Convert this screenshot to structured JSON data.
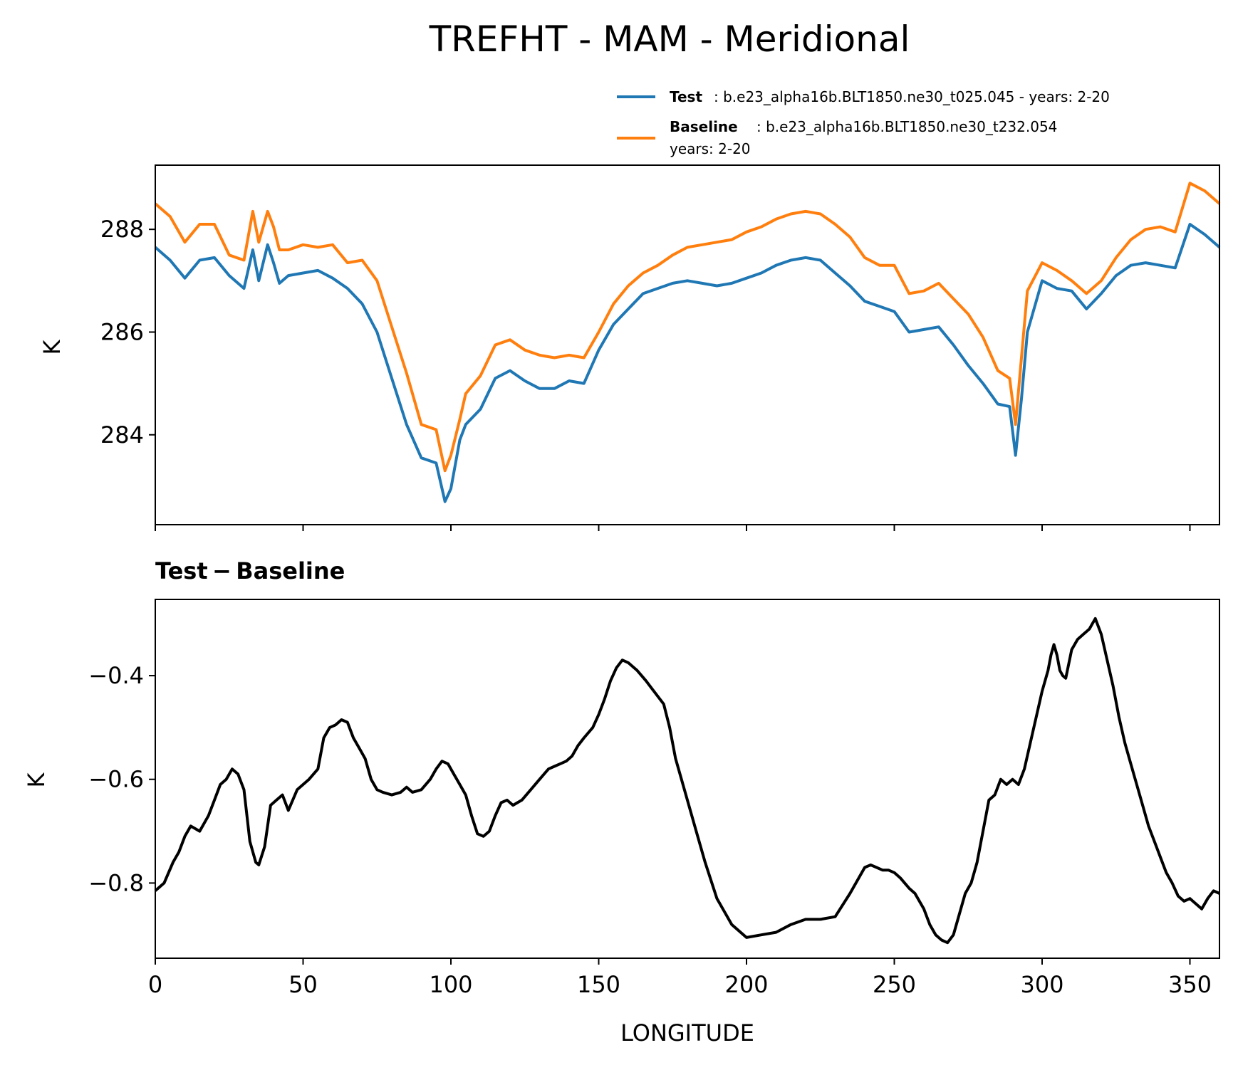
{
  "chart_data": [
    {
      "type": "line",
      "title": "TREFHT - MAM - Meridional",
      "xlabel": "",
      "ylabel": "K",
      "xlim": [
        0,
        360
      ],
      "ylim": [
        282.25,
        289.25
      ],
      "yticks": [
        284,
        286,
        288
      ],
      "xticks": [
        0,
        50,
        100,
        150,
        200,
        250,
        300,
        350
      ],
      "legend": {
        "position": "top-right",
        "entries": [
          {
            "bold": "Test",
            "text": ": b.e23_alpha16b.BLT1850.ne30_t025.045 - years: 2-20",
            "text2": ""
          },
          {
            "bold": "Baseline",
            "text": ": b.e23_alpha16b.BLT1850.ne30_t232.054",
            "text2": "years: 2-20"
          }
        ]
      },
      "x": [
        0,
        5,
        10,
        15,
        20,
        25,
        30,
        33,
        35,
        38,
        40,
        42,
        45,
        50,
        55,
        60,
        65,
        70,
        75,
        80,
        85,
        90,
        95,
        98,
        100,
        103,
        105,
        110,
        115,
        120,
        125,
        130,
        135,
        140,
        145,
        150,
        155,
        160,
        165,
        170,
        175,
        180,
        185,
        190,
        195,
        200,
        205,
        210,
        215,
        220,
        225,
        230,
        235,
        240,
        245,
        250,
        255,
        260,
        265,
        270,
        275,
        280,
        285,
        289,
        291,
        293,
        295,
        300,
        305,
        310,
        315,
        320,
        325,
        330,
        335,
        340,
        345,
        350,
        355,
        360
      ],
      "series": [
        {
          "name": "Test",
          "color": "#1f77b4",
          "values": [
            287.65,
            287.4,
            287.05,
            287.4,
            287.45,
            287.1,
            286.85,
            287.6,
            287.0,
            287.7,
            287.35,
            286.95,
            287.1,
            287.15,
            287.2,
            287.05,
            286.85,
            286.55,
            286.0,
            285.1,
            284.2,
            283.55,
            283.45,
            282.7,
            282.95,
            283.9,
            284.2,
            284.5,
            285.1,
            285.25,
            285.05,
            284.9,
            284.9,
            285.05,
            285.0,
            285.65,
            286.15,
            286.45,
            286.75,
            286.85,
            286.95,
            287.0,
            286.95,
            286.9,
            286.95,
            287.05,
            287.15,
            287.3,
            287.4,
            287.45,
            287.4,
            287.15,
            286.9,
            286.6,
            286.5,
            286.4,
            286.0,
            286.05,
            286.1,
            285.75,
            285.35,
            285.0,
            284.6,
            284.55,
            283.6,
            284.7,
            286.0,
            287.0,
            286.85,
            286.8,
            286.45,
            286.75,
            287.1,
            287.3,
            287.35,
            287.3,
            287.25,
            288.1,
            287.9,
            287.65
          ]
        },
        {
          "name": "Baseline",
          "color": "#ff7f0e",
          "values": [
            288.5,
            288.25,
            287.75,
            288.1,
            288.1,
            287.5,
            287.4,
            288.35,
            287.75,
            288.35,
            288.05,
            287.6,
            287.6,
            287.7,
            287.65,
            287.7,
            287.35,
            287.4,
            287.0,
            286.1,
            285.2,
            284.2,
            284.1,
            283.3,
            283.6,
            284.3,
            284.8,
            285.15,
            285.75,
            285.85,
            285.65,
            285.55,
            285.5,
            285.55,
            285.5,
            286.0,
            286.55,
            286.9,
            287.15,
            287.3,
            287.5,
            287.65,
            287.7,
            287.75,
            287.8,
            287.95,
            288.05,
            288.2,
            288.3,
            288.35,
            288.3,
            288.1,
            287.85,
            287.45,
            287.3,
            287.3,
            286.75,
            286.8,
            286.95,
            286.65,
            286.35,
            285.9,
            285.25,
            285.1,
            284.2,
            285.5,
            286.8,
            287.35,
            287.2,
            287.0,
            286.75,
            287.0,
            287.45,
            287.8,
            288.0,
            288.05,
            287.95,
            288.9,
            288.75,
            288.5
          ]
        }
      ]
    },
    {
      "type": "line",
      "title": "Test − Baseline",
      "xlabel": "LONGITUDE",
      "ylabel": "K",
      "xlim": [
        0,
        360
      ],
      "ylim": [
        -0.945,
        -0.253
      ],
      "yticks": [
        -0.8,
        -0.6,
        -0.4
      ],
      "ytick_labels": [
        "−0.8",
        "−0.6",
        "−0.4"
      ],
      "xticks": [
        0,
        50,
        100,
        150,
        200,
        250,
        300,
        350
      ],
      "x": [
        0,
        3,
        6,
        8,
        10,
        12,
        15,
        18,
        20,
        22,
        24,
        26,
        28,
        30,
        32,
        34,
        35,
        37,
        39,
        41,
        43,
        45,
        48,
        50,
        52,
        55,
        57,
        59,
        61,
        63,
        65,
        67,
        69,
        71,
        73,
        75,
        77,
        80,
        83,
        85,
        87,
        90,
        93,
        95,
        97,
        99,
        101,
        103,
        105,
        107,
        109,
        111,
        113,
        115,
        117,
        119,
        121,
        124,
        127,
        130,
        133,
        135,
        137,
        139,
        141,
        143,
        145,
        148,
        150,
        152,
        154,
        156,
        158,
        160,
        163,
        166,
        168,
        170,
        172,
        174,
        176,
        178,
        180,
        183,
        186,
        190,
        195,
        200,
        205,
        210,
        215,
        220,
        225,
        230,
        235,
        240,
        242,
        244,
        246,
        248,
        250,
        252,
        255,
        257,
        260,
        262,
        264,
        266,
        268,
        270,
        272,
        274,
        276,
        278,
        280,
        282,
        284,
        286,
        288,
        290,
        292,
        294,
        296,
        298,
        300,
        302,
        303,
        304,
        305,
        306,
        307,
        308,
        310,
        312,
        314,
        316,
        317,
        318,
        320,
        322,
        324,
        326,
        328,
        330,
        332,
        334,
        336,
        338,
        340,
        342,
        344,
        346,
        348,
        350,
        352,
        354,
        356,
        358,
        360
      ],
      "series": [
        {
          "name": "Test − Baseline",
          "color": "#000000",
          "values": [
            -0.815,
            -0.8,
            -0.76,
            -0.74,
            -0.71,
            -0.69,
            -0.7,
            -0.67,
            -0.64,
            -0.61,
            -0.6,
            -0.58,
            -0.59,
            -0.62,
            -0.72,
            -0.76,
            -0.765,
            -0.73,
            -0.65,
            -0.64,
            -0.63,
            -0.66,
            -0.62,
            -0.61,
            -0.6,
            -0.58,
            -0.52,
            -0.5,
            -0.495,
            -0.485,
            -0.49,
            -0.52,
            -0.54,
            -0.56,
            -0.6,
            -0.62,
            -0.625,
            -0.63,
            -0.625,
            -0.615,
            -0.625,
            -0.62,
            -0.6,
            -0.58,
            -0.565,
            -0.57,
            -0.59,
            -0.61,
            -0.63,
            -0.67,
            -0.705,
            -0.71,
            -0.7,
            -0.67,
            -0.645,
            -0.64,
            -0.65,
            -0.64,
            -0.62,
            -0.6,
            -0.58,
            -0.575,
            -0.57,
            -0.565,
            -0.555,
            -0.535,
            -0.52,
            -0.5,
            -0.475,
            -0.445,
            -0.41,
            -0.385,
            -0.37,
            -0.375,
            -0.39,
            -0.41,
            -0.425,
            -0.44,
            -0.455,
            -0.5,
            -0.56,
            -0.6,
            -0.64,
            -0.7,
            -0.76,
            -0.83,
            -0.88,
            -0.905,
            -0.9,
            -0.895,
            -0.88,
            -0.87,
            -0.87,
            -0.865,
            -0.82,
            -0.77,
            -0.765,
            -0.77,
            -0.775,
            -0.775,
            -0.78,
            -0.79,
            -0.81,
            -0.82,
            -0.85,
            -0.88,
            -0.9,
            -0.91,
            -0.915,
            -0.9,
            -0.86,
            -0.82,
            -0.8,
            -0.76,
            -0.7,
            -0.64,
            -0.63,
            -0.6,
            -0.61,
            -0.6,
            -0.61,
            -0.58,
            -0.53,
            -0.48,
            -0.43,
            -0.39,
            -0.36,
            -0.34,
            -0.36,
            -0.39,
            -0.4,
            -0.405,
            -0.35,
            -0.33,
            -0.32,
            -0.31,
            -0.3,
            -0.29,
            -0.32,
            -0.37,
            -0.42,
            -0.48,
            -0.53,
            -0.57,
            -0.61,
            -0.65,
            -0.69,
            -0.72,
            -0.75,
            -0.78,
            -0.8,
            -0.825,
            -0.835,
            -0.83,
            -0.84,
            -0.85,
            -0.83,
            -0.815,
            -0.82
          ]
        }
      ]
    }
  ]
}
